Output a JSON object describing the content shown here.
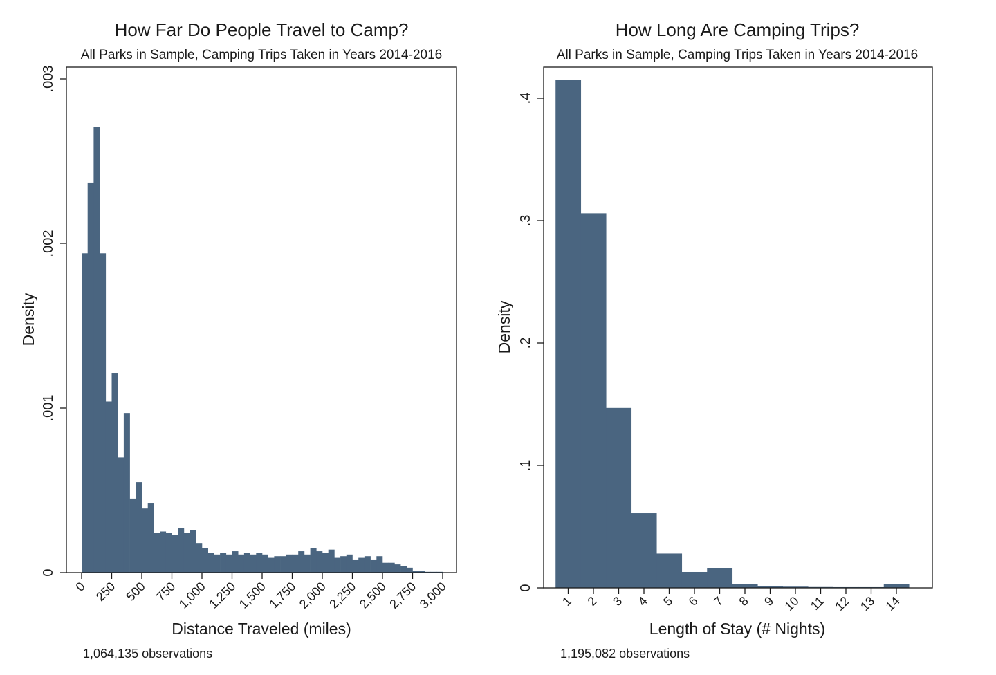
{
  "chart_data": [
    {
      "type": "bar",
      "title": "How Far Do People Travel to Camp?",
      "subtitle": "All Parks in Sample, Camping Trips Taken in Years 2014-2016",
      "xlabel": "Distance Traveled (miles)",
      "ylabel": "Density",
      "note": "1,064,135 observations",
      "bar_color": "#4a6580",
      "xlim": [
        0,
        3000
      ],
      "ylim": [
        0,
        0.003
      ],
      "x_ticks": [
        0,
        250,
        500,
        750,
        1000,
        1250,
        1500,
        1750,
        2000,
        2250,
        2500,
        2750,
        3000
      ],
      "x_tick_labels": [
        "0",
        "250",
        "500",
        "750",
        "1,000",
        "1,250",
        "1,500",
        "1,750",
        "2,000",
        "2,250",
        "2,500",
        "2,750",
        "3,000"
      ],
      "y_ticks": [
        0,
        0.001,
        0.002,
        0.003
      ],
      "y_tick_labels": [
        "0",
        ".001",
        ".002",
        ".003"
      ],
      "bin_width": 50,
      "bin_start": 0,
      "values": [
        0.00194,
        0.00237,
        0.00271,
        0.00194,
        0.00104,
        0.00121,
        0.0007,
        0.00097,
        0.00045,
        0.00055,
        0.00039,
        0.00042,
        0.00024,
        0.00025,
        0.00024,
        0.00023,
        0.00027,
        0.00024,
        0.00026,
        0.00018,
        0.00015,
        0.00012,
        0.00011,
        0.00012,
        0.00011,
        0.00013,
        0.00011,
        0.00012,
        0.00011,
        0.00012,
        0.00011,
        9e-05,
        0.0001,
        0.0001,
        0.00011,
        0.00011,
        0.00013,
        0.00011,
        0.00015,
        0.00013,
        0.00012,
        0.00014,
        9e-05,
        0.0001,
        0.00011,
        8e-05,
        9e-05,
        0.0001,
        8e-05,
        0.0001,
        6e-05,
        6e-05,
        5e-05,
        4e-05,
        3e-05,
        1e-05,
        1e-05,
        5e-06,
        5e-06,
        5e-06
      ]
    },
    {
      "type": "bar",
      "title": "How Long Are Camping Trips?",
      "subtitle": "All Parks in Sample, Camping Trips Taken in Years 2014-2016",
      "xlabel": "Length of Stay (# Nights)",
      "ylabel": "Density",
      "note": "1,195,082 observations",
      "bar_color": "#4a6580",
      "xlim": [
        0,
        14.5
      ],
      "ylim": [
        0,
        0.4
      ],
      "categories": [
        "1",
        "2",
        "3",
        "4",
        "5",
        "6",
        "7",
        "8",
        "9",
        "10",
        "11",
        "12",
        "13",
        "14"
      ],
      "x_positions": [
        1,
        2,
        3,
        4,
        5,
        6,
        7,
        8,
        9,
        10,
        11,
        12,
        13,
        14
      ],
      "values": [
        0.415,
        0.306,
        0.147,
        0.061,
        0.028,
        0.013,
        0.016,
        0.003,
        0.0015,
        0.001,
        0.0007,
        0.0006,
        0.0006,
        0.003
      ],
      "y_ticks": [
        0,
        0.1,
        0.2,
        0.3,
        0.4
      ],
      "y_tick_labels": [
        "0",
        ".1",
        ".2",
        ".3",
        ".4"
      ]
    }
  ]
}
